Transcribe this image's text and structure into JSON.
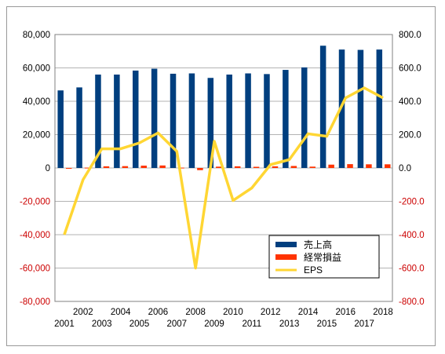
{
  "chart_data": {
    "type": "bar",
    "categories": [
      "2001",
      "2002",
      "2003",
      "2004",
      "2005",
      "2006",
      "2007",
      "2008",
      "2009",
      "2010",
      "2011",
      "2012",
      "2013",
      "2014",
      "2015",
      "2016",
      "2017",
      "2018"
    ],
    "series": [
      {
        "name": "売上高",
        "type": "bar",
        "axis": "left",
        "color": "#003f7f",
        "values": [
          46500,
          48300,
          56000,
          56000,
          58400,
          59500,
          56500,
          56700,
          54000,
          56000,
          56700,
          56300,
          58800,
          60300,
          73300,
          71000,
          70800,
          71000
        ]
      },
      {
        "name": "経常損益",
        "type": "bar",
        "axis": "left",
        "color": "#ff3300",
        "values": [
          -300,
          200,
          1000,
          1100,
          1400,
          1500,
          200,
          -1300,
          800,
          1000,
          700,
          1000,
          1200,
          800,
          2000,
          2300,
          2200,
          2200
        ]
      },
      {
        "name": "EPS",
        "type": "line",
        "axis": "right",
        "color": "#ffd633",
        "values": [
          -400,
          -70,
          115,
          115,
          150,
          210,
          100,
          -600,
          160,
          -195,
          -120,
          20,
          50,
          205,
          190,
          420,
          480,
          420
        ]
      }
    ],
    "yleft": {
      "min": -80000,
      "max": 80000,
      "step": 20000,
      "ticks": [
        "-80,000",
        "-60,000",
        "-40,000",
        "-20,000",
        "0",
        "20,000",
        "40,000",
        "60,000",
        "80,000"
      ]
    },
    "yright": {
      "min": -800,
      "max": 800,
      "step": 200,
      "ticks": [
        "-800.0",
        "-600.0",
        "-400.0",
        "-200.0",
        "0.0",
        "200.0",
        "400.0",
        "600.0",
        "800.0"
      ]
    },
    "negative_tick_color": "#cc0000",
    "grid": true,
    "legend_position": "bottom-right",
    "title": "",
    "xlabel": "",
    "ylabel": ""
  }
}
